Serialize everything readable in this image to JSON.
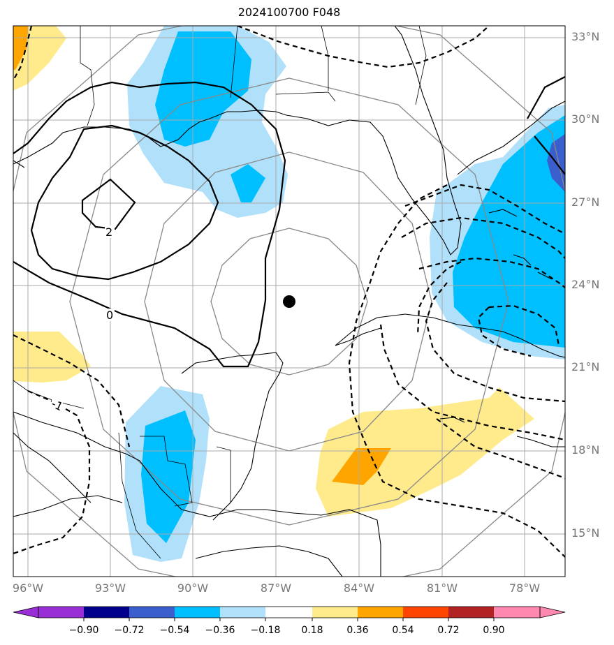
{
  "title": "2024100700 F048",
  "map": {
    "lat_labels": [
      "33°N",
      "30°N",
      "27°N",
      "24°N",
      "21°N",
      "18°N",
      "15°N"
    ],
    "lon_labels": [
      "96°W",
      "93°W",
      "90°W",
      "87°W",
      "84°W",
      "81°W",
      "78°W"
    ],
    "contour_labels": [
      "2",
      "0",
      "-1"
    ],
    "storm_center": {
      "lat": 23.3,
      "lon": 86.6
    }
  },
  "colorbar": {
    "ticks": [
      "−0.90",
      "−0.72",
      "−0.54",
      "−0.36",
      "−0.18",
      "0.18",
      "0.36",
      "0.54",
      "0.72",
      "0.90"
    ],
    "colors": [
      "#9a2ed6",
      "#00008c",
      "#3a5fcd",
      "#00bfff",
      "#b0e0fa",
      "#ffffff",
      "#ffeb8c",
      "#ffa500",
      "#ff4500",
      "#b22222",
      "#ff88b0"
    ]
  }
}
